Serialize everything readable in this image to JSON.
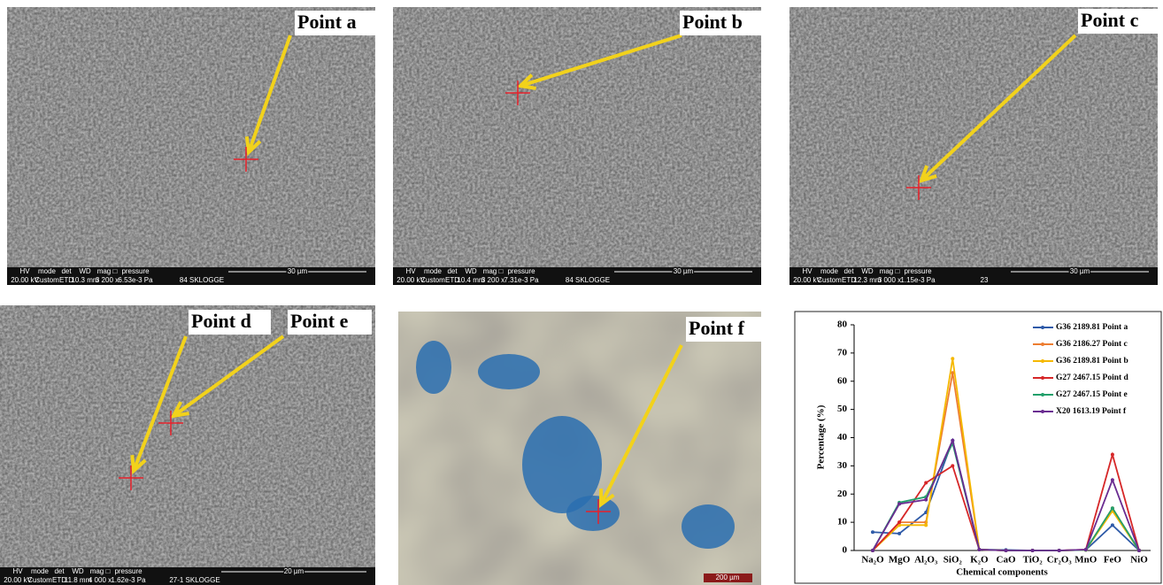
{
  "panels": [
    {
      "label": "Point a",
      "info_bar": {
        "header": [
          "HV",
          "mode",
          "det",
          "WD",
          "mag □",
          "pressure"
        ],
        "values": [
          "20.00 kV",
          "Custom",
          "ETD",
          "10.3 mm",
          "3 200 x",
          "6.53e-3 Pa",
          "84 SKLOGGE"
        ],
        "scale": "30 µm"
      }
    },
    {
      "label": "Point b",
      "info_bar": {
        "header": [
          "HV",
          "mode",
          "det",
          "WD",
          "mag □",
          "pressure"
        ],
        "values": [
          "20.00 kV",
          "Custom",
          "ETD",
          "10.4 mm",
          "3 200 x",
          "7.31e-3 Pa",
          "84 SKLOGGE"
        ],
        "scale": "30 µm"
      }
    },
    {
      "label": "Point c",
      "info_bar": {
        "header": [
          "HV",
          "mode",
          "det",
          "WD",
          "mag □",
          "pressure"
        ],
        "values": [
          "20.00 kV",
          "Custom",
          "ETD",
          "12.3 mm",
          "3 000 x",
          "1.15e-3 Pa",
          "23"
        ],
        "scale": "30 µm"
      }
    },
    {
      "labels": [
        "Point d",
        "Point e"
      ],
      "info_bar": {
        "header": [
          "HV",
          "mode",
          "det",
          "WD",
          "mag □",
          "pressure"
        ],
        "values": [
          "20.00 kV",
          "Custom",
          "ETD",
          "11.8 mm",
          "4 000 x",
          "1.62e-3 Pa",
          "27-1 SKLOGGE"
        ],
        "scale": "20 µm"
      }
    },
    {
      "label": "Point f",
      "scale": "200 µm"
    }
  ],
  "chart_data": {
    "type": "line",
    "x_label": "Chemical components",
    "y_label": "Percentage  (%)",
    "categories": [
      "Na₂O",
      "MgO",
      "Al₂O₃",
      "SiO₂",
      "K₂O",
      "CaO",
      "TiO₂",
      "Cr₂O₃",
      "MnO",
      "FeO",
      "NiO"
    ],
    "ylim": [
      0,
      80
    ],
    "yticks": [
      0,
      10,
      20,
      30,
      40,
      50,
      60,
      70,
      80
    ],
    "series": [
      {
        "name": "G36  2189.81 Point a",
        "color": "#2e5aa8",
        "values": [
          6.5,
          6,
          13.5,
          39,
          0.3,
          0.2,
          0,
          0,
          0.2,
          9,
          0
        ]
      },
      {
        "name": "G36  2186.27 Point c",
        "color": "#ed7d31",
        "values": [
          0,
          10,
          10,
          63,
          0.3,
          0,
          0,
          0,
          0.2,
          15,
          0
        ]
      },
      {
        "name": "G36  2189.81 Point b",
        "color": "#f5b800",
        "values": [
          0,
          9,
          9,
          68,
          0.3,
          0,
          0,
          0,
          0.2,
          14,
          0
        ]
      },
      {
        "name": "G27 2467.15 Point d",
        "color": "#d62728",
        "values": [
          0,
          10,
          24,
          30,
          0.3,
          0,
          0,
          0,
          0.3,
          34,
          0
        ]
      },
      {
        "name": "G27 2467.15 Point e",
        "color": "#22a06b",
        "values": [
          0,
          17,
          19,
          38,
          0.3,
          0,
          0,
          0,
          0.2,
          15,
          0
        ]
      },
      {
        "name": "X20 1613.19 Point f",
        "color": "#6a2c91",
        "values": [
          0,
          16.5,
          18,
          39,
          0.3,
          0,
          0,
          0,
          0.3,
          25,
          0
        ]
      }
    ]
  }
}
